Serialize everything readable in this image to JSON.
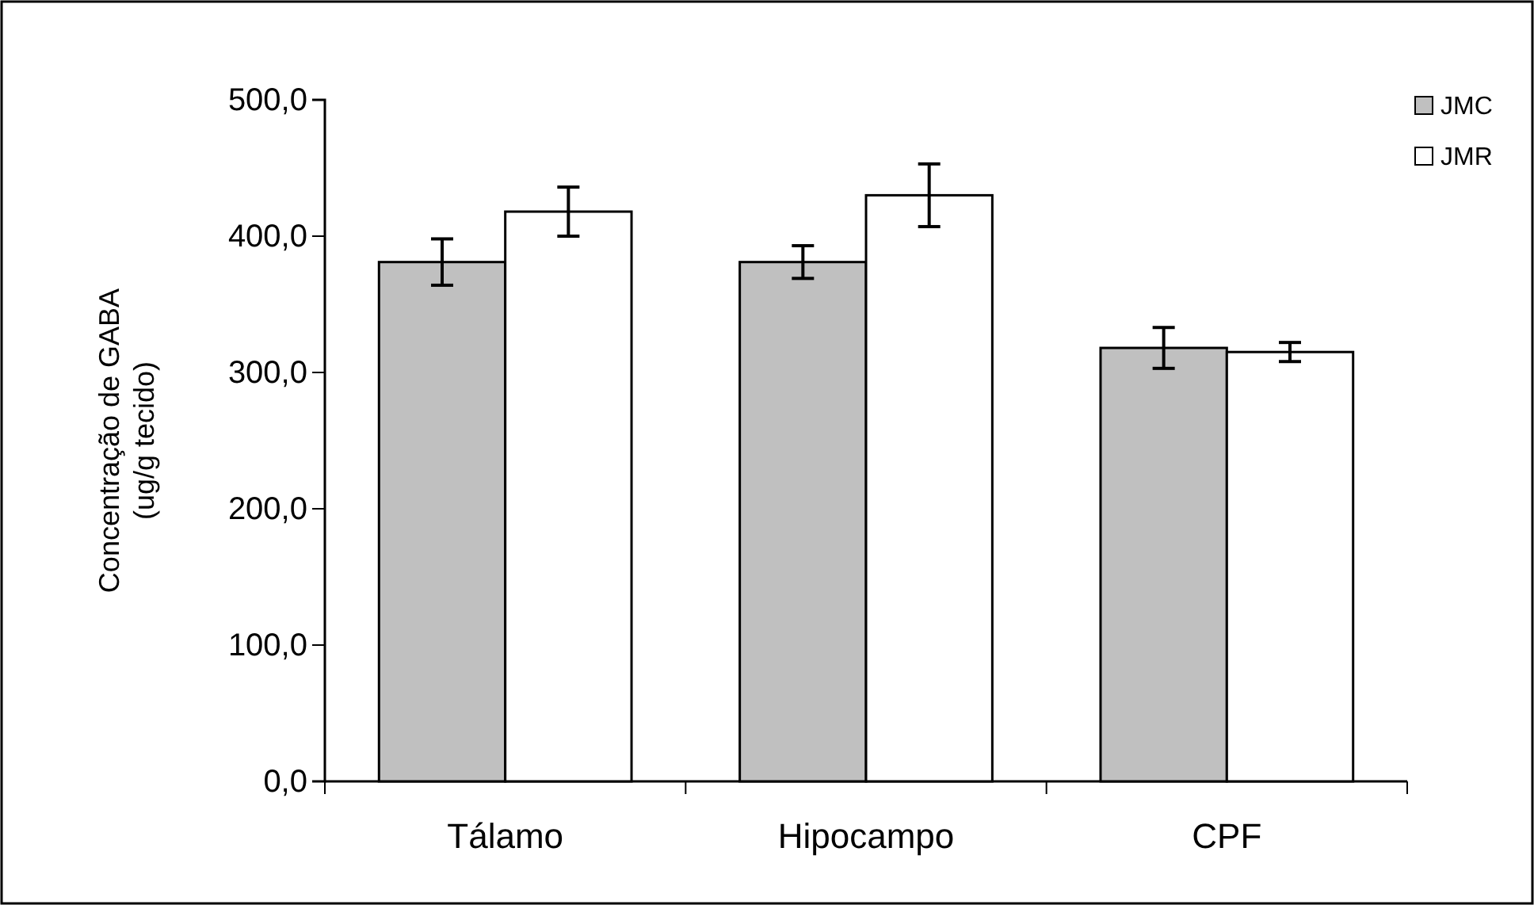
{
  "chart_data": {
    "type": "bar",
    "ylabel": "Concentração de GABA\n(ug/g tecido)",
    "categories": [
      "Tálamo",
      "Hipocampo",
      "CPF"
    ],
    "series": [
      {
        "name": "JMC",
        "color": "#c0c0c0",
        "values": [
          381,
          381,
          318
        ],
        "errors": [
          17,
          12,
          15
        ]
      },
      {
        "name": "JMR",
        "color": "#ffffff",
        "values": [
          418,
          430,
          315
        ],
        "errors": [
          18,
          23,
          7
        ]
      }
    ],
    "ylim": [
      0,
      500
    ],
    "yticks": [
      {
        "value": 0,
        "label": "0,0"
      },
      {
        "value": 100,
        "label": "100,0"
      },
      {
        "value": 200,
        "label": "200,0"
      },
      {
        "value": 300,
        "label": "300,0"
      },
      {
        "value": 400,
        "label": "400,0"
      },
      {
        "value": 500,
        "label": "500,0"
      }
    ],
    "grid": false,
    "legend": "top right"
  }
}
